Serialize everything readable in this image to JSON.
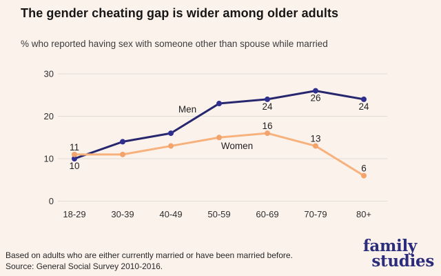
{
  "page": {
    "title": "The gender cheating gap is wider among older adults",
    "subtitle": "% who reported having sex with someone other than spouse while married",
    "footnote_line1": "Based on adults who are either currently married or have been married before.",
    "footnote_line2": "Source: General Social Survey 2010-2016.",
    "logo_line1": "family",
    "logo_line2": "studies"
  },
  "colors": {
    "background": "#fcf2ec",
    "gridline": "#e1dbd6",
    "men_line": "#27276f",
    "men_marker": "#2f2f8f",
    "women_line": "#f7b17c",
    "women_marker": "#f3a46c",
    "logo": "#2b2c7c",
    "text": "#1f1f1f"
  },
  "chart_data": {
    "type": "line",
    "title": "The gender cheating gap is wider among older adults",
    "xlabel": "",
    "ylabel": "% who reported having sex with someone other than spouse while married",
    "categories": [
      "18-29",
      "30-39",
      "40-49",
      "50-59",
      "60-69",
      "70-79",
      "80+"
    ],
    "y_ticks": [
      0,
      10,
      20,
      30
    ],
    "ylim": [
      0,
      31
    ],
    "grid": "horizontal",
    "legend_position": "inline-labels",
    "series": [
      {
        "name": "Men",
        "color": "#27276f",
        "marker_color": "#2f2f8f",
        "values": [
          10,
          14,
          16,
          23,
          24,
          26,
          24
        ],
        "point_labels": [
          "10",
          "",
          "",
          "",
          "24",
          "26",
          "24"
        ],
        "label_side": "below"
      },
      {
        "name": "Women",
        "color": "#f7b17c",
        "marker_color": "#f3a46c",
        "values": [
          11,
          11,
          13,
          15,
          16,
          13,
          6
        ],
        "point_labels": [
          "11",
          "",
          "",
          "",
          "16",
          "13",
          "6"
        ],
        "label_side": "above"
      }
    ]
  }
}
